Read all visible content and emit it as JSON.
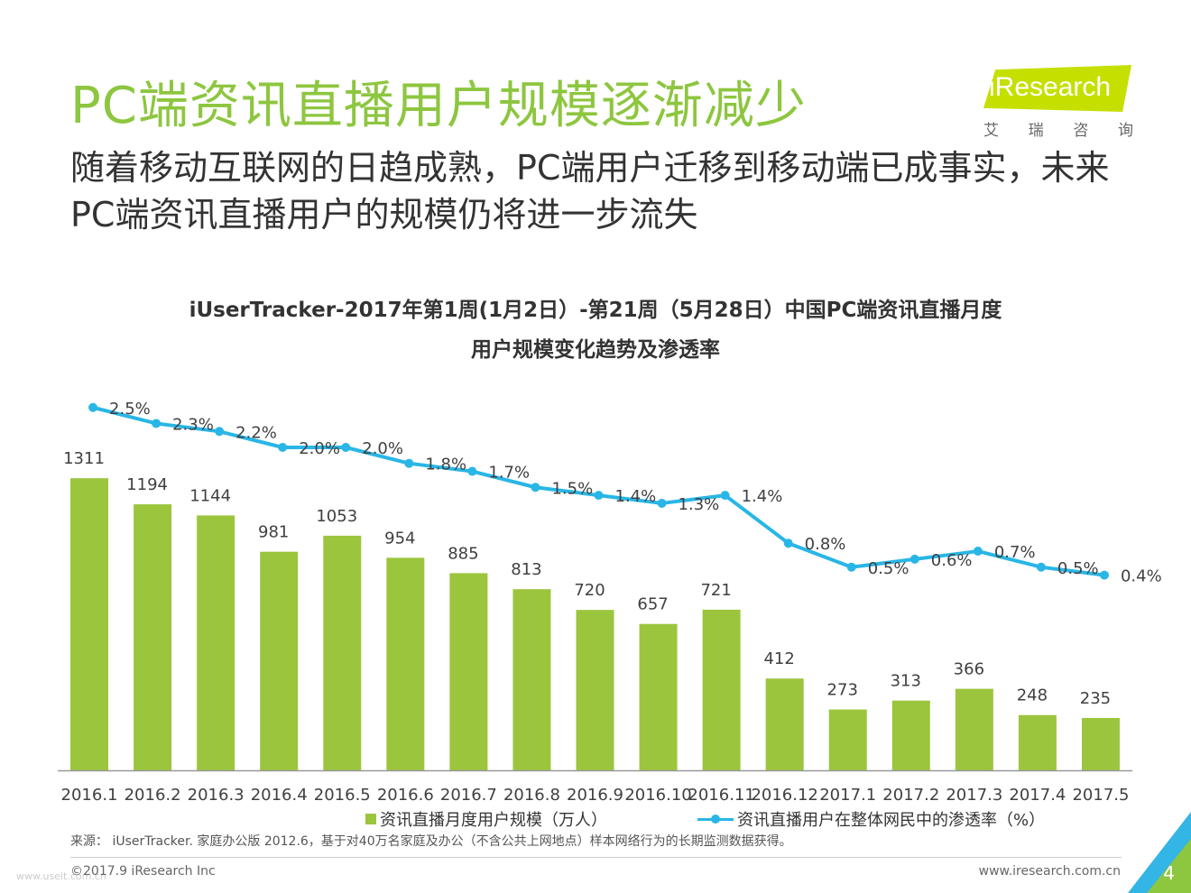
{
  "header": {
    "title": "PC端资讯直播用户规模逐渐减少",
    "subtitle": "随着移动互联网的日趋成熟，PC端用户迁移到移动端已成事实，未来PC端资讯直播用户的规模仍将进一步流失"
  },
  "logo": {
    "name": "iResearch",
    "chinese": [
      "艾",
      "瑞",
      "咨",
      "询"
    ]
  },
  "chart_data": {
    "type": "bar",
    "title_line1": "iUserTracker-2017年第1周(1月2日）-第21周（5月28日）中国PC端资讯直播月度",
    "title_line2": "用户规模变化趋势及渗透率",
    "categories": [
      "2016.1",
      "2016.2",
      "2016.3",
      "2016.4",
      "2016.5",
      "2016.6",
      "2016.7",
      "2016.8",
      "2016.9",
      "2016.10",
      "2016.11",
      "2016.12",
      "2017.1",
      "2017.2",
      "2017.3",
      "2017.4",
      "2017.5"
    ],
    "series": [
      {
        "name": "资讯直播月度用户规模（万人）",
        "type": "bar",
        "color": "#9BC53D",
        "values": [
          1311,
          1194,
          1144,
          981,
          1053,
          954,
          885,
          813,
          720,
          657,
          721,
          412,
          273,
          313,
          366,
          248,
          235
        ]
      },
      {
        "name": "资讯直播用户在整体网民中的渗透率（%）",
        "type": "line",
        "color": "#29B6E6",
        "values": [
          2.5,
          2.3,
          2.2,
          2.0,
          2.0,
          1.8,
          1.7,
          1.5,
          1.4,
          1.3,
          1.4,
          0.8,
          0.5,
          0.6,
          0.7,
          0.5,
          0.4
        ],
        "labels": [
          "2.5%",
          "2.3%",
          "2.2%",
          "2.0%",
          "2.0%",
          "1.8%",
          "1.7%",
          "1.5%",
          "1.4%",
          "1.3%",
          "1.4%",
          "0.8%",
          "0.5%",
          "0.6%",
          "0.7%",
          "0.5%",
          "0.4%"
        ]
      }
    ],
    "xlabel": "",
    "ylabel": "",
    "grid": false
  },
  "legend": {
    "bar_label": "资讯直播月度用户规模（万人）",
    "line_label": "资讯直播用户在整体网民中的渗透率（%）"
  },
  "footer": {
    "source": "来源： iUserTracker. 家庭办公版 2012.6，基于对40万名家庭及办公（不含公共上网地点）样本网络行为的长期监测数据获得。",
    "copyright": "©2017.9 iResearch Inc",
    "website": "www.iresearch.com.cn",
    "page_number": "4",
    "watermark": "www.useit.com.cn"
  }
}
